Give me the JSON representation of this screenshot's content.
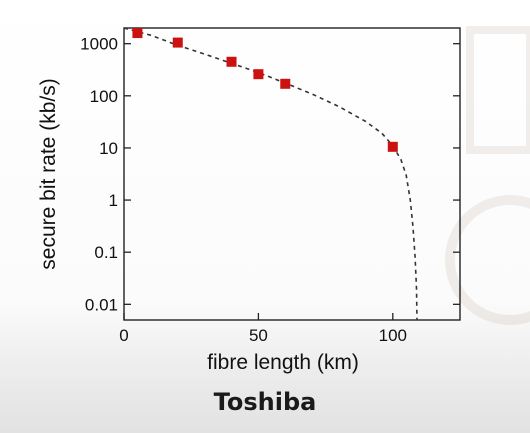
{
  "chart_data": {
    "type": "scatter",
    "xlabel": "fibre length (km)",
    "ylabel": "secure bit rate (kb/s)",
    "xlim": [
      0,
      125
    ],
    "ylim": [
      0.005,
      2000
    ],
    "y_scale": "log",
    "x_ticks": [
      0,
      50,
      100
    ],
    "y_ticks": [
      {
        "value": 0.01,
        "label": "0.01"
      },
      {
        "value": 0.1,
        "label": "0.1"
      },
      {
        "value": 1,
        "label": "1"
      },
      {
        "value": 10,
        "label": "10"
      },
      {
        "value": 100,
        "label": "100"
      },
      {
        "value": 1000,
        "label": "1000"
      }
    ],
    "grid": false,
    "series": [
      {
        "marker": "square",
        "color": "#cc1111",
        "points": [
          {
            "x": 5,
            "y": 1600
          },
          {
            "x": 20,
            "y": 1050
          },
          {
            "x": 40,
            "y": 450
          },
          {
            "x": 50,
            "y": 260
          },
          {
            "x": 60,
            "y": 170
          },
          {
            "x": 100,
            "y": 10.5
          }
        ]
      },
      {
        "style": "dashed",
        "color": "#333333",
        "points": [
          {
            "x": 0,
            "y": 2500
          },
          {
            "x": 10,
            "y": 1450
          },
          {
            "x": 20,
            "y": 930
          },
          {
            "x": 30,
            "y": 630
          },
          {
            "x": 40,
            "y": 420
          },
          {
            "x": 50,
            "y": 280
          },
          {
            "x": 60,
            "y": 175
          },
          {
            "x": 70,
            "y": 108
          },
          {
            "x": 80,
            "y": 62
          },
          {
            "x": 90,
            "y": 32
          },
          {
            "x": 96,
            "y": 19
          },
          {
            "x": 100,
            "y": 11
          },
          {
            "x": 103,
            "y": 6
          },
          {
            "x": 105,
            "y": 3
          },
          {
            "x": 106.5,
            "y": 1
          },
          {
            "x": 107.5,
            "y": 0.3
          },
          {
            "x": 108.3,
            "y": 0.08
          },
          {
            "x": 108.8,
            "y": 0.02
          },
          {
            "x": 109,
            "y": 0.005
          }
        ]
      }
    ]
  },
  "footer": {
    "label": "Toshiba"
  }
}
